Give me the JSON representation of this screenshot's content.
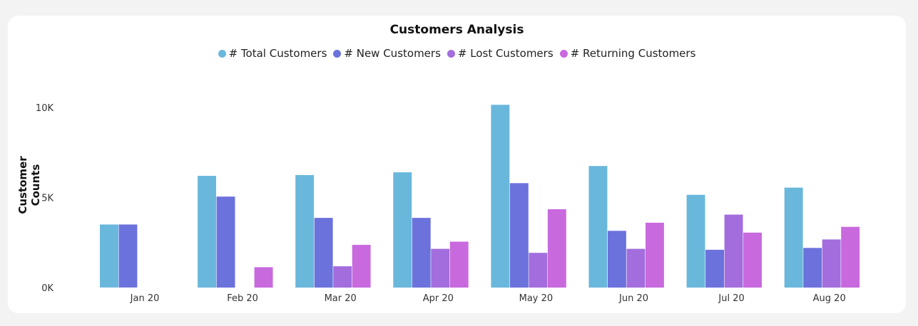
{
  "chart_data": {
    "type": "bar",
    "title": "Customers Analysis",
    "xlabel": "",
    "ylabel": "Customer Counts",
    "ylim": [
      0,
      10000
    ],
    "yticks": [
      0,
      5000,
      10000
    ],
    "ytick_labels": [
      "0K",
      "5K",
      "10K"
    ],
    "categories": [
      "Jan 20",
      "Feb 20",
      "Mar 20",
      "Apr 20",
      "May 20",
      "Jun 20",
      "Jul 20",
      "Aug 20"
    ],
    "series": [
      {
        "name": "# Total Customers",
        "color": "#6ab7dc",
        "values": [
          3500,
          6200,
          6250,
          6400,
          10150,
          6750,
          5150,
          5550
        ]
      },
      {
        "name": "# New Customers",
        "color": "#6b72dc",
        "values": [
          3500,
          5050,
          3870,
          3870,
          5800,
          3150,
          2100,
          2200
        ]
      },
      {
        "name": "# Lost Customers",
        "color": "#a36ddd",
        "values": [
          0,
          0,
          1180,
          2150,
          1930,
          2150,
          4050,
          2670
        ]
      },
      {
        "name": "# Returning Customers",
        "color": "#c86ade",
        "values": [
          0,
          1130,
          2370,
          2550,
          4350,
          3600,
          3050,
          3370
        ]
      }
    ],
    "legend_position": "top-center",
    "grid": false
  }
}
